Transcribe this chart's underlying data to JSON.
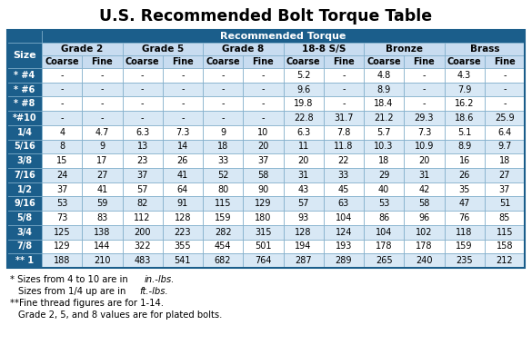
{
  "title": "U.S. Recommended Bolt Torque Table",
  "size_labels": [
    "* #4",
    "* #6",
    "* #8",
    "*#10",
    "1/4",
    "5/16",
    "3/8",
    "7/16",
    "1/2",
    "9/16",
    "5/8",
    "3/4",
    "7/8",
    "** 1"
  ],
  "data": [
    [
      "-",
      "-",
      "-",
      "-",
      "-",
      "-",
      "5.2",
      "-",
      "4.8",
      "-",
      "4.3",
      "-"
    ],
    [
      "-",
      "-",
      "-",
      "-",
      "-",
      "-",
      "9.6",
      "-",
      "8.9",
      "-",
      "7.9",
      "-"
    ],
    [
      "-",
      "-",
      "-",
      "-",
      "-",
      "-",
      "19.8",
      "-",
      "18.4",
      "-",
      "16.2",
      "-"
    ],
    [
      "-",
      "-",
      "-",
      "-",
      "-",
      "-",
      "22.8",
      "31.7",
      "21.2",
      "29.3",
      "18.6",
      "25.9"
    ],
    [
      "4",
      "4.7",
      "6.3",
      "7.3",
      "9",
      "10",
      "6.3",
      "7.8",
      "5.7",
      "7.3",
      "5.1",
      "6.4"
    ],
    [
      "8",
      "9",
      "13",
      "14",
      "18",
      "20",
      "11",
      "11.8",
      "10.3",
      "10.9",
      "8.9",
      "9.7"
    ],
    [
      "15",
      "17",
      "23",
      "26",
      "33",
      "37",
      "20",
      "22",
      "18",
      "20",
      "16",
      "18"
    ],
    [
      "24",
      "27",
      "37",
      "41",
      "52",
      "58",
      "31",
      "33",
      "29",
      "31",
      "26",
      "27"
    ],
    [
      "37",
      "41",
      "57",
      "64",
      "80",
      "90",
      "43",
      "45",
      "40",
      "42",
      "35",
      "37"
    ],
    [
      "53",
      "59",
      "82",
      "91",
      "115",
      "129",
      "57",
      "63",
      "53",
      "58",
      "47",
      "51"
    ],
    [
      "73",
      "83",
      "112",
      "128",
      "159",
      "180",
      "93",
      "104",
      "86",
      "96",
      "76",
      "85"
    ],
    [
      "125",
      "138",
      "200",
      "223",
      "282",
      "315",
      "128",
      "124",
      "104",
      "102",
      "118",
      "115"
    ],
    [
      "129",
      "144",
      "322",
      "355",
      "454",
      "501",
      "194",
      "193",
      "178",
      "178",
      "159",
      "158"
    ],
    [
      "188",
      "210",
      "483",
      "541",
      "682",
      "764",
      "287",
      "289",
      "265",
      "240",
      "235",
      "212"
    ]
  ],
  "grade_labels": [
    "Grade 2",
    "Grade 5",
    "Grade 8",
    "18-8 S/S",
    "Bronze",
    "Brass"
  ],
  "bold_size_rows": [
    0,
    1,
    2,
    3,
    5,
    9,
    10,
    11,
    12,
    13
  ],
  "header_dark_bg": "#1B5E8B",
  "header_light_bg": "#C8DCF0",
  "row_white": "#FFFFFF",
  "row_blue": "#D8E8F5",
  "size_col_bg": "#1B5E8B",
  "size_col_text": "#FFFFFF",
  "dark_text": "#FFFFFF",
  "border_col": "#7AAAC8",
  "outer_border": "#1B5E8B"
}
